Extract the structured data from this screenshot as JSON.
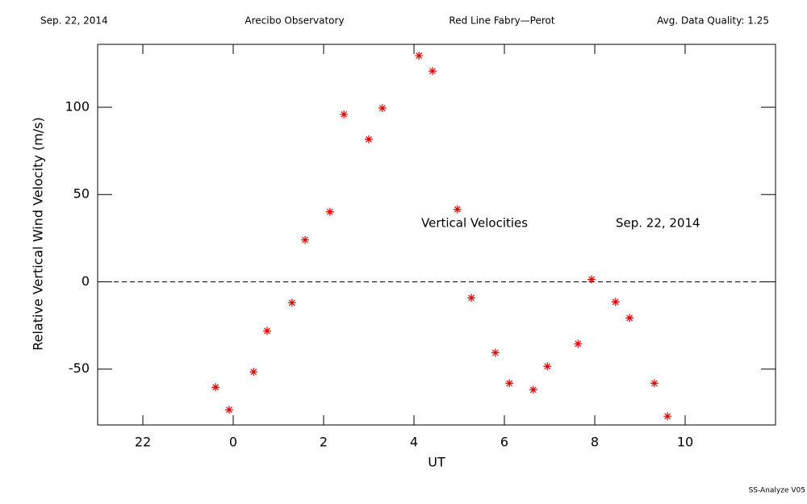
{
  "chart_data": {
    "type": "scatter",
    "header": [
      "Sep. 22, 2014",
      "Arecibo Observatory",
      "Red Line Fabry—Perot",
      "Avg. Data Quality: 1.25"
    ],
    "xlabel": "UT",
    "ylabel": "Relative Vertical Wind Velocity (m/s)",
    "annotations": [
      "Vertical Velocities",
      "Sep. 22, 2014"
    ],
    "footer": "SS-Analyze V05",
    "xlim": [
      -3,
      12
    ],
    "ylim": [
      -82,
      136
    ],
    "xticks": [
      {
        "value": -2,
        "label": "22"
      },
      0,
      2,
      4,
      6,
      8,
      10
    ],
    "yticks": [
      -50,
      0,
      50,
      100
    ],
    "hline": 0,
    "series": [
      {
        "color": "#e00000",
        "x": [
          -0.39,
          -0.09,
          0.45,
          0.75,
          1.3,
          1.59,
          2.14,
          2.45,
          3.0,
          3.3,
          4.11,
          4.41,
          4.96,
          5.27,
          5.8,
          6.11,
          6.64,
          6.95,
          7.63,
          7.93,
          8.46,
          8.77,
          9.32,
          9.61
        ],
        "values": [
          -60.4,
          -73.3,
          -51.6,
          -28.1,
          -12.0,
          24.0,
          40.1,
          95.9,
          81.6,
          99.5,
          129.5,
          120.7,
          41.5,
          -9.2,
          -40.6,
          -58.1,
          -61.8,
          -48.4,
          -35.5,
          1.4,
          -11.5,
          -20.7,
          -58.1,
          -77.0
        ]
      }
    ]
  }
}
